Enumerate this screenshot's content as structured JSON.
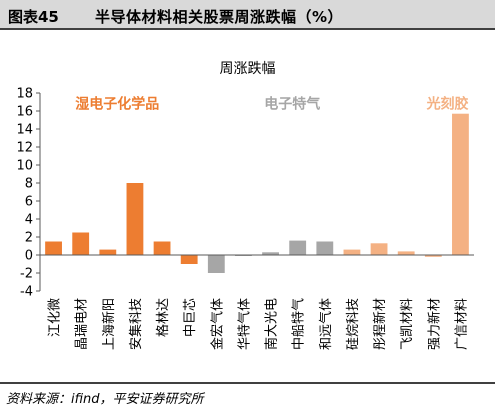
{
  "figure": {
    "number": "图表45",
    "title": "半导体材料相关股票周涨跌幅（%）",
    "source": "资料来源：ifind，平安证券研究所"
  },
  "chart_data": {
    "type": "bar",
    "title": "周涨跌幅",
    "xlabel": "",
    "ylabel": "",
    "ylim": [
      -4,
      18
    ],
    "yticks": [
      18,
      16,
      14,
      12,
      10,
      8,
      6,
      4,
      2,
      0,
      -2,
      -4
    ],
    "grid": false,
    "categories": [
      "江化微",
      "晶瑞电材",
      "上海新阳",
      "安集科技",
      "格林达",
      "中巨芯",
      "金宏气体",
      "华特气体",
      "南大光电",
      "中船特气",
      "和远气体",
      "硅烷科技",
      "彤程新材",
      "飞凯材料",
      "强力新材",
      "广信材料"
    ],
    "values": [
      1.5,
      2.5,
      0.6,
      8.0,
      1.5,
      -1.0,
      -2.0,
      -0.1,
      0.3,
      1.6,
      1.5,
      0.6,
      1.3,
      0.4,
      -0.2,
      15.7
    ],
    "groups": [
      {
        "name": "湿电子化学品",
        "color": "#ed7d31",
        "from": 0,
        "to": 5
      },
      {
        "name": "电子特气",
        "color": "#a6a6a6",
        "from": 6,
        "to": 10
      },
      {
        "name": "光刻胶",
        "color": "#f4b183",
        "from": 11,
        "to": 15
      }
    ],
    "colors": {
      "wet_chemicals": "#ed7d31",
      "special_gas": "#a6a6a6",
      "photoresist": "#f4b183"
    }
  }
}
